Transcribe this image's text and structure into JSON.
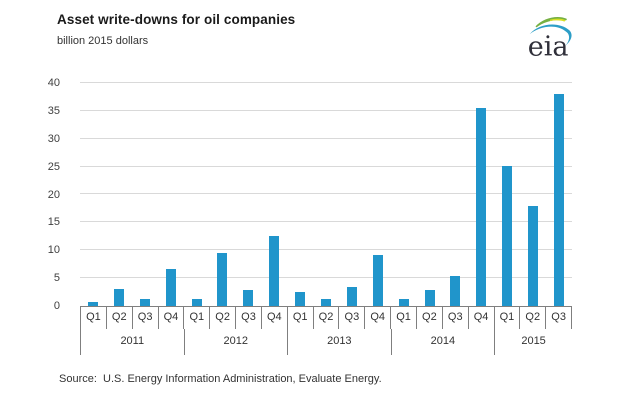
{
  "chart": {
    "title": "Asset write-downs for oil companies",
    "units_label": "billion 2015 dollars",
    "source": "Source:  U.S. Energy Information Administration, Evaluate Energy.",
    "logo_text": "eia"
  },
  "chart_data": {
    "type": "bar",
    "title": "Asset write-downs for oil companies",
    "xlabel": "",
    "ylabel": "billion 2015 dollars",
    "ylim": [
      0,
      40
    ],
    "ytick_step": 5,
    "yticks": [
      0,
      5,
      10,
      15,
      20,
      25,
      30,
      35,
      40
    ],
    "grid": "horizontal",
    "legend": "none",
    "bar_color": "#2095cb",
    "gridline_color": "#d9d9d9",
    "axis_color": "#7f7f7f",
    "groups": [
      {
        "year": "2011",
        "quarters": [
          "Q1",
          "Q2",
          "Q3",
          "Q4"
        ],
        "values": [
          0.8,
          3.0,
          1.2,
          6.7
        ]
      },
      {
        "year": "2012",
        "quarters": [
          "Q1",
          "Q2",
          "Q3",
          "Q4"
        ],
        "values": [
          1.3,
          9.5,
          2.8,
          12.6
        ]
      },
      {
        "year": "2013",
        "quarters": [
          "Q1",
          "Q2",
          "Q3",
          "Q4"
        ],
        "values": [
          2.5,
          1.2,
          3.4,
          9.2
        ]
      },
      {
        "year": "2014",
        "quarters": [
          "Q1",
          "Q2",
          "Q3",
          "Q4"
        ],
        "values": [
          1.2,
          2.9,
          5.4,
          35.6
        ]
      },
      {
        "year": "2015",
        "quarters": [
          "Q1",
          "Q2",
          "Q3"
        ],
        "values": [
          25.2,
          18.0,
          38.1
        ]
      }
    ]
  }
}
